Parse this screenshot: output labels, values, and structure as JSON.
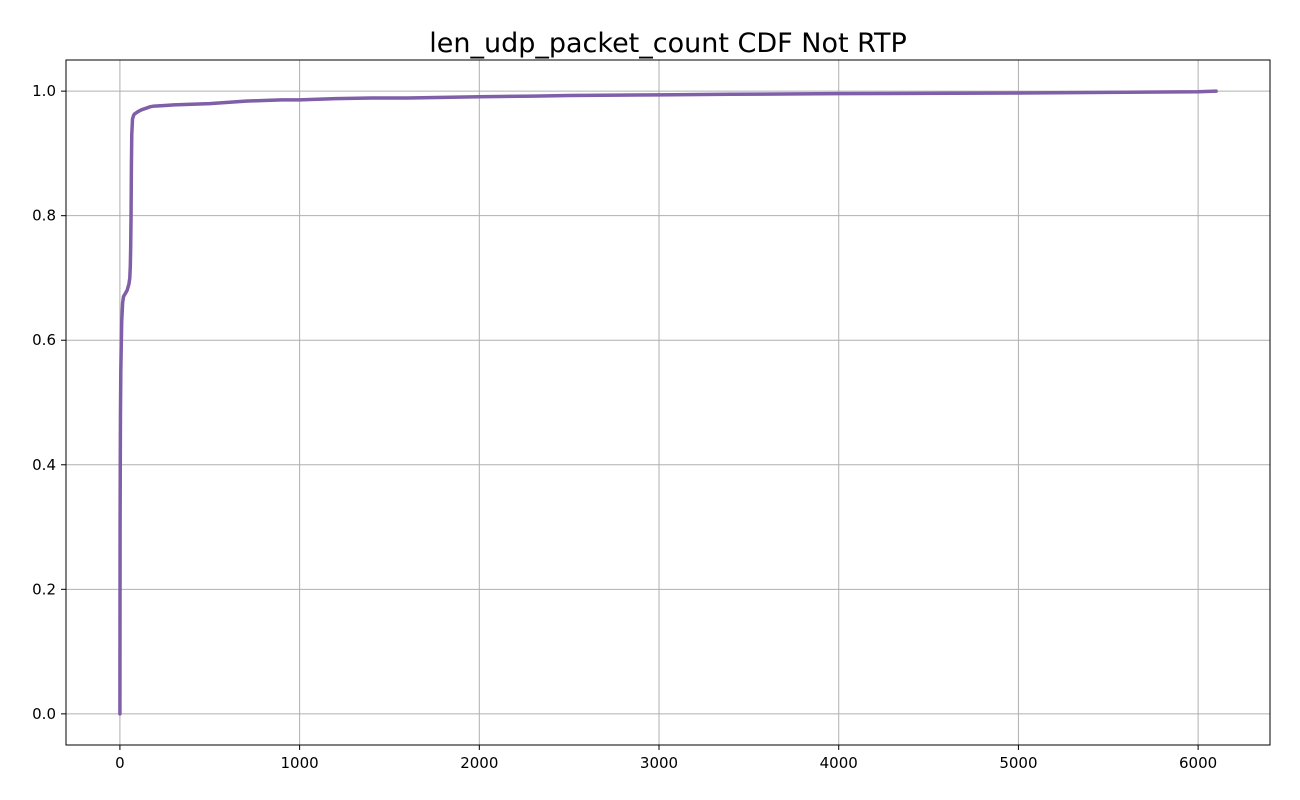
{
  "chart_data": {
    "type": "line",
    "title": "len_udp_packet_count CDF Not RTP",
    "xlabel": "",
    "ylabel": "",
    "xlim": [
      -300,
      6400
    ],
    "ylim": [
      -0.05,
      1.05
    ],
    "x_ticks": [
      0,
      1000,
      2000,
      3000,
      4000,
      5000,
      6000
    ],
    "x_tick_labels": [
      "0",
      "1000",
      "2000",
      "3000",
      "4000",
      "5000",
      "6000"
    ],
    "y_ticks": [
      0.0,
      0.2,
      0.4,
      0.6,
      0.8,
      1.0
    ],
    "y_tick_labels": [
      "0.0",
      "0.2",
      "0.4",
      "0.6",
      "0.8",
      "1.0"
    ],
    "grid": true,
    "line_color": "#7f5fa8",
    "series": [
      {
        "x": [
          0,
          0.5,
          1,
          2,
          3,
          5,
          8,
          10,
          15,
          20,
          30,
          40,
          50,
          55,
          58,
          60,
          62,
          64,
          66,
          70,
          75,
          80,
          90,
          100,
          120,
          150,
          170,
          190,
          250,
          300,
          400,
          500,
          600,
          700,
          800,
          900,
          1000,
          1100,
          1200,
          1400,
          1600,
          1800,
          2000,
          2300,
          2500,
          3000,
          3400,
          4000,
          5000,
          6000,
          6100
        ],
        "y": [
          0.0,
          0.15,
          0.3,
          0.4,
          0.48,
          0.55,
          0.6,
          0.63,
          0.66,
          0.67,
          0.675,
          0.68,
          0.69,
          0.7,
          0.72,
          0.75,
          0.8,
          0.88,
          0.93,
          0.955,
          0.96,
          0.963,
          0.965,
          0.967,
          0.97,
          0.973,
          0.975,
          0.976,
          0.977,
          0.978,
          0.979,
          0.98,
          0.982,
          0.984,
          0.985,
          0.986,
          0.986,
          0.987,
          0.988,
          0.989,
          0.989,
          0.99,
          0.991,
          0.992,
          0.993,
          0.994,
          0.995,
          0.996,
          0.997,
          0.999,
          1.0
        ]
      }
    ]
  }
}
